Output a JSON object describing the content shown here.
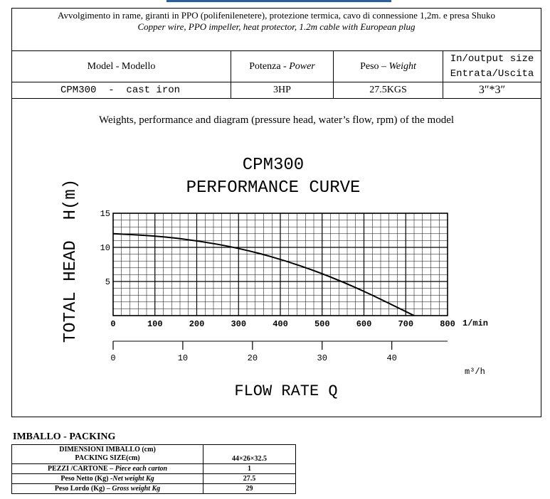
{
  "header": {
    "description_it": "Avvolgimento in rame, giranti in PPO  (polifenilenetere), protezione termica, cavo di connessione 1,2m. e presa Shuko",
    "description_en": "Copper wire, PPO impeller, heat protector, 1.2m cable with European plug"
  },
  "spec_table": {
    "headers": {
      "model": "Model - Modello",
      "power_it": "Potenza - ",
      "power_en": "Power",
      "weight_it": "Peso – ",
      "weight_en": "Weight",
      "io_line1": "In/output size",
      "io_line2": "Entrata/Uscita"
    },
    "row": {
      "model": "CPM300  -  cast iron",
      "power": "3HP",
      "weight": "27.5KGS",
      "io": "3″*3″"
    }
  },
  "section_subtitle": "Weights, performance and diagram (pressure head, water’s flow, rpm) of the model",
  "chart_data": {
    "type": "line",
    "title": "CPM300",
    "subtitle": "PERFORMANCE CURVE",
    "ylabel": "TOTAL HEAD  H(m)",
    "xlabel": "FLOW RATE Q",
    "x_unit": "1/min",
    "x2_unit": "m³/h",
    "xlim": [
      0,
      800
    ],
    "ylim": [
      0,
      15
    ],
    "x_ticks": [
      "0",
      "100",
      "200",
      "300",
      "400",
      "500",
      "600",
      "700",
      "800"
    ],
    "y_ticks": [
      "15",
      "10",
      "5"
    ],
    "x2_ticks": [
      "0",
      "10",
      "20",
      "30",
      "40"
    ],
    "grid": true,
    "series": [
      {
        "x": [
          0,
          100,
          200,
          300,
          400,
          500,
          600,
          700,
          720
        ],
        "y": [
          12,
          11.7,
          11,
          9.9,
          8.3,
          6.2,
          3.6,
          0.6,
          0
        ]
      }
    ]
  },
  "packing": {
    "title": "IMBALLO - PACKING",
    "rows": [
      {
        "label_it": "DIMENSIONI IMBALLO (cm)",
        "label_en": "PACKING SIZE(cm)",
        "value": "44×26×32.5"
      },
      {
        "label_it": "PEZZI /CARTONE – ",
        "label_en": "Piece each carton",
        "value": "1"
      },
      {
        "label_it": "Peso Netto (Kg) -",
        "label_en": "Net  weight Kg",
        "value": "27.5"
      },
      {
        "label_it": "Peso Lordo (Kg) – ",
        "label_en": "Gross weight Kg",
        "value": "29"
      }
    ]
  }
}
